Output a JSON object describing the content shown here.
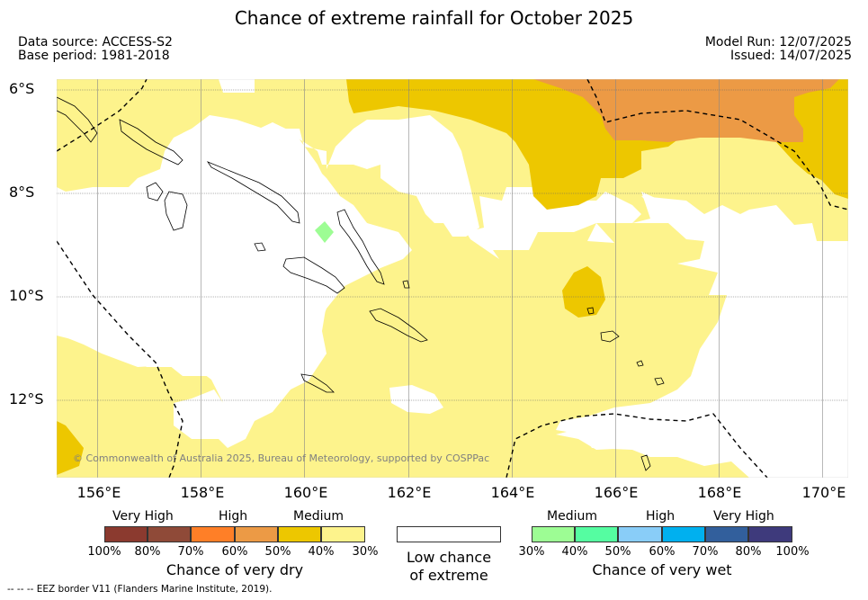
{
  "title": "Chance of extreme rainfall for October 2025",
  "data_source": "Data source: ACCESS-S2",
  "base_period": "Base period: 1981-2018",
  "model_run": "Model Run: 12/07/2025",
  "issued": "Issued: 14/07/2025",
  "map": {
    "copyright": "© Commonwealth of Australia 2025, Bureau of Meteorology, supported by COSPPac",
    "lat_labels": [
      "6°S",
      "8°S",
      "10°S",
      "12°S"
    ],
    "lon_labels": [
      "156°E",
      "158°E",
      "160°E",
      "162°E",
      "164°E",
      "166°E",
      "168°E",
      "170°E"
    ]
  },
  "legend_dry": {
    "categories": [
      "Very High",
      "High",
      "Medium"
    ],
    "colors": [
      "#8b3a2f",
      "#8f4a38",
      "#ff7f27",
      "#ec9a45",
      "#edc700",
      "#fdf38c"
    ],
    "ticks": [
      "100%",
      "80%",
      "70%",
      "60%",
      "50%",
      "40%",
      "30%"
    ],
    "title": "Chance of very dry"
  },
  "legend_low": {
    "color": "#ffffff",
    "title_line1": "Low chance",
    "title_line2": "of extreme"
  },
  "legend_wet": {
    "categories": [
      "Medium",
      "High",
      "Very High"
    ],
    "colors": [
      "#9dfd94",
      "#55fda1",
      "#89cdf8",
      "#00b0ef",
      "#325f9c",
      "#3e3a7c"
    ],
    "ticks": [
      "30%",
      "40%",
      "50%",
      "60%",
      "70%",
      "80%",
      "100%"
    ],
    "title": "Chance of very wet"
  },
  "footnote": "--  --  -- EEZ border V11 (Flanders Marine Institute, 2019).",
  "colors": {
    "medium_dry": "#fdf38c",
    "high_dry_medium": "#edc700",
    "high_dry": "#ec9a45",
    "medium_wet": "#9dfd94"
  }
}
